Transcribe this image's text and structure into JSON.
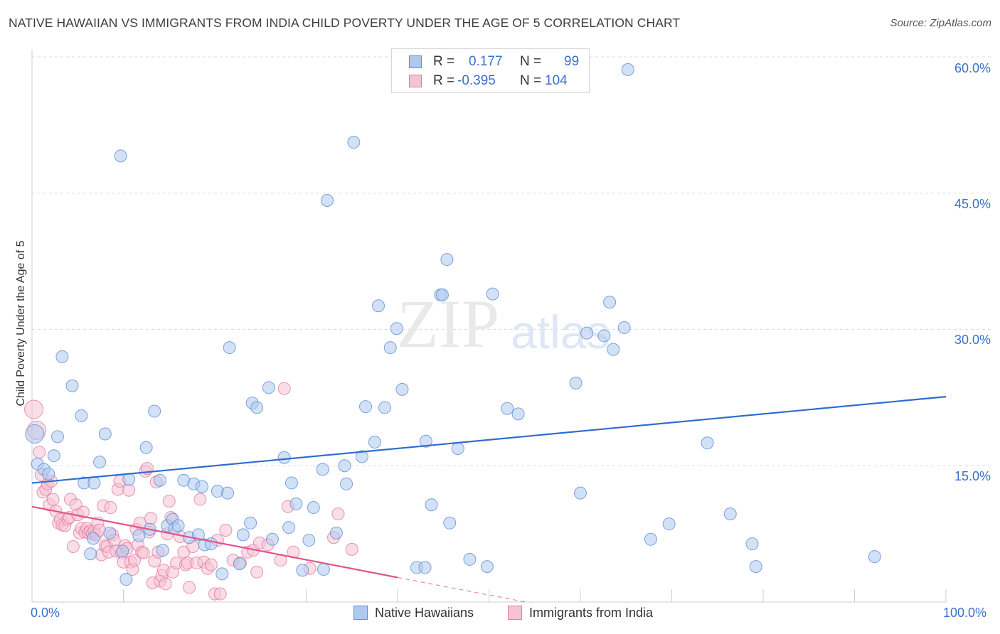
{
  "title": "NATIVE HAWAIIAN VS IMMIGRANTS FROM INDIA CHILD POVERTY UNDER THE AGE OF 5 CORRELATION CHART",
  "source": "Source: ZipAtlas.com",
  "watermark": {
    "zip": "ZIP",
    "atlas": "atlas"
  },
  "legend_stats": [
    {
      "r_label": "R =",
      "r_value": "0.177",
      "n_label": "N =",
      "n_value": "99",
      "color": "#5b8fd6"
    },
    {
      "r_label": "R =",
      "r_value": "-0.395",
      "n_label": "N =",
      "n_value": "104",
      "color": "#e47aa0"
    }
  ],
  "colors": {
    "blue_fill": "#aec8ee",
    "blue_stroke": "#5b8fd6",
    "blue_line": "#2f6ccf",
    "pink_fill": "#f6c3d4",
    "pink_stroke": "#e47aa0",
    "pink_line": "#e0558a",
    "grid": "#dddddd",
    "tick_text": "#3a70cc"
  },
  "chart_data": {
    "type": "scatter",
    "xlabel": "",
    "ylabel": "Child Poverty Under the Age of 5",
    "xlim": [
      0,
      100
    ],
    "ylim": [
      0,
      60
    ],
    "x_tick_labels": {
      "min": "0.0%",
      "max": "100.0%"
    },
    "y_ticks": [
      {
        "value": 15,
        "label": "15.0%"
      },
      {
        "value": 30,
        "label": "30.0%"
      },
      {
        "value": 45,
        "label": "45.0%"
      },
      {
        "value": 60,
        "label": "60.0%"
      }
    ],
    "series": [
      {
        "name": "Native Hawaiians",
        "r": 0.177,
        "n": 99,
        "trend": {
          "x": [
            0,
            100
          ],
          "y": [
            13.1,
            22.6
          ]
        },
        "points": [
          [
            0.3,
            18.5
          ],
          [
            0.6,
            15.2
          ],
          [
            1.3,
            14.6
          ],
          [
            1.8,
            14.1
          ],
          [
            2.4,
            16.1
          ],
          [
            2.8,
            18.2
          ],
          [
            3.3,
            27.0
          ],
          [
            4.4,
            23.8
          ],
          [
            5.4,
            20.5
          ],
          [
            5.7,
            13.1
          ],
          [
            6.4,
            5.3
          ],
          [
            6.8,
            13.1
          ],
          [
            6.7,
            7.0
          ],
          [
            7.4,
            15.4
          ],
          [
            8.0,
            18.5
          ],
          [
            8.5,
            7.6
          ],
          [
            9.7,
            49.1
          ],
          [
            9.9,
            5.6
          ],
          [
            10.3,
            2.5
          ],
          [
            10.6,
            13.5
          ],
          [
            11.7,
            7.3
          ],
          [
            12.5,
            17.0
          ],
          [
            12.9,
            8.0
          ],
          [
            13.4,
            21.0
          ],
          [
            14.0,
            13.4
          ],
          [
            14.3,
            5.7
          ],
          [
            14.8,
            8.4
          ],
          [
            15.4,
            9.1
          ],
          [
            15.6,
            8.1
          ],
          [
            16.0,
            8.4
          ],
          [
            16.6,
            13.4
          ],
          [
            17.2,
            7.1
          ],
          [
            17.7,
            13.0
          ],
          [
            18.2,
            7.4
          ],
          [
            18.6,
            12.7
          ],
          [
            18.9,
            6.3
          ],
          [
            19.6,
            6.4
          ],
          [
            20.3,
            12.2
          ],
          [
            20.8,
            3.1
          ],
          [
            21.4,
            12.0
          ],
          [
            21.6,
            28.0
          ],
          [
            22.7,
            4.2
          ],
          [
            23.1,
            7.4
          ],
          [
            23.9,
            8.7
          ],
          [
            24.1,
            21.9
          ],
          [
            24.6,
            21.4
          ],
          [
            25.9,
            23.6
          ],
          [
            26.3,
            6.9
          ],
          [
            27.6,
            15.9
          ],
          [
            28.1,
            8.2
          ],
          [
            28.4,
            13.1
          ],
          [
            28.9,
            10.8
          ],
          [
            29.6,
            3.5
          ],
          [
            30.3,
            6.8
          ],
          [
            30.8,
            10.4
          ],
          [
            31.9,
            3.6
          ],
          [
            31.8,
            14.6
          ],
          [
            32.3,
            44.2
          ],
          [
            33.3,
            7.6
          ],
          [
            34.2,
            15.0
          ],
          [
            34.4,
            13.0
          ],
          [
            35.2,
            50.6
          ],
          [
            36.1,
            16.0
          ],
          [
            36.5,
            21.5
          ],
          [
            37.5,
            17.6
          ],
          [
            37.9,
            32.6
          ],
          [
            38.6,
            21.4
          ],
          [
            39.2,
            28.0
          ],
          [
            39.9,
            30.1
          ],
          [
            40.5,
            23.4
          ],
          [
            42.1,
            3.8
          ],
          [
            43.0,
            3.8
          ],
          [
            43.1,
            17.7
          ],
          [
            43.7,
            10.7
          ],
          [
            44.7,
            33.8
          ],
          [
            44.9,
            33.8
          ],
          [
            45.4,
            37.7
          ],
          [
            45.7,
            8.7
          ],
          [
            46.6,
            16.9
          ],
          [
            47.9,
            4.7
          ],
          [
            49.8,
            3.9
          ],
          [
            50.4,
            33.9
          ],
          [
            52.0,
            21.3
          ],
          [
            53.2,
            20.7
          ],
          [
            59.5,
            24.1
          ],
          [
            60.0,
            12.0
          ],
          [
            60.7,
            29.6
          ],
          [
            62.6,
            29.3
          ],
          [
            63.2,
            33.0
          ],
          [
            63.6,
            27.8
          ],
          [
            64.8,
            30.2
          ],
          [
            65.2,
            58.6
          ],
          [
            67.7,
            6.9
          ],
          [
            69.7,
            8.6
          ],
          [
            73.9,
            17.5
          ],
          [
            76.4,
            9.7
          ],
          [
            78.8,
            6.4
          ],
          [
            79.2,
            3.9
          ],
          [
            92.2,
            5.0
          ]
        ]
      },
      {
        "name": "Immigrants from India",
        "r": -0.395,
        "n": 104,
        "trend": {
          "x": [
            0,
            40
          ],
          "y": [
            10.5,
            2.7
          ]
        },
        "trend_dashed": {
          "x": [
            40,
            54
          ],
          "y": [
            2.7,
            0
          ]
        },
        "points": [
          [
            0.2,
            21.2
          ],
          [
            0.5,
            18.9
          ],
          [
            0.8,
            16.5
          ],
          [
            1.0,
            14.0
          ],
          [
            1.2,
            12.1
          ],
          [
            1.5,
            12.4
          ],
          [
            1.7,
            13.0
          ],
          [
            1.9,
            10.7
          ],
          [
            2.1,
            13.3
          ],
          [
            2.3,
            11.3
          ],
          [
            2.6,
            10.0
          ],
          [
            2.9,
            8.7
          ],
          [
            3.1,
            9.1
          ],
          [
            3.3,
            8.5
          ],
          [
            3.6,
            8.4
          ],
          [
            3.9,
            9.1
          ],
          [
            4.1,
            9.3
          ],
          [
            4.2,
            11.3
          ],
          [
            4.5,
            6.1
          ],
          [
            4.8,
            10.7
          ],
          [
            5.0,
            9.6
          ],
          [
            5.2,
            7.6
          ],
          [
            5.4,
            8.1
          ],
          [
            5.6,
            9.9
          ],
          [
            5.8,
            7.7
          ],
          [
            6.0,
            8.1
          ],
          [
            6.2,
            7.6
          ],
          [
            6.4,
            7.8
          ],
          [
            6.6,
            7.5
          ],
          [
            6.8,
            7.8
          ],
          [
            7.0,
            7.4
          ],
          [
            7.2,
            8.7
          ],
          [
            7.4,
            7.9
          ],
          [
            7.6,
            5.2
          ],
          [
            7.8,
            10.6
          ],
          [
            8.0,
            6.2
          ],
          [
            8.2,
            6.1
          ],
          [
            8.4,
            5.5
          ],
          [
            8.6,
            10.4
          ],
          [
            8.8,
            7.4
          ],
          [
            9.0,
            6.8
          ],
          [
            9.2,
            5.6
          ],
          [
            9.4,
            12.4
          ],
          [
            9.6,
            13.3
          ],
          [
            9.8,
            5.4
          ],
          [
            10.0,
            4.4
          ],
          [
            10.2,
            6.2
          ],
          [
            10.4,
            5.9
          ],
          [
            10.6,
            12.3
          ],
          [
            10.8,
            4.4
          ],
          [
            11.0,
            3.6
          ],
          [
            11.2,
            4.6
          ],
          [
            11.4,
            8.0
          ],
          [
            11.6,
            6.3
          ],
          [
            11.8,
            8.7
          ],
          [
            12.0,
            5.5
          ],
          [
            12.2,
            5.4
          ],
          [
            12.4,
            14.4
          ],
          [
            12.6,
            14.7
          ],
          [
            12.8,
            7.7
          ],
          [
            13.0,
            9.2
          ],
          [
            13.2,
            2.1
          ],
          [
            13.4,
            4.5
          ],
          [
            13.6,
            13.2
          ],
          [
            13.8,
            5.5
          ],
          [
            14.0,
            2.3
          ],
          [
            14.2,
            2.9
          ],
          [
            14.4,
            3.5
          ],
          [
            14.6,
            2.0
          ],
          [
            14.8,
            7.5
          ],
          [
            15.0,
            11.1
          ],
          [
            15.2,
            9.3
          ],
          [
            15.4,
            3.3
          ],
          [
            15.8,
            4.3
          ],
          [
            16.2,
            7.2
          ],
          [
            16.6,
            5.5
          ],
          [
            16.8,
            4.1
          ],
          [
            17.0,
            4.3
          ],
          [
            17.2,
            1.6
          ],
          [
            17.6,
            6.1
          ],
          [
            18.0,
            4.3
          ],
          [
            18.4,
            11.3
          ],
          [
            18.8,
            4.4
          ],
          [
            19.2,
            3.7
          ],
          [
            19.6,
            4.1
          ],
          [
            20.0,
            0.9
          ],
          [
            20.3,
            6.8
          ],
          [
            20.6,
            0.9
          ],
          [
            21.2,
            7.9
          ],
          [
            22.0,
            4.6
          ],
          [
            22.8,
            4.3
          ],
          [
            23.6,
            5.5
          ],
          [
            24.2,
            5.7
          ],
          [
            24.6,
            3.3
          ],
          [
            24.9,
            6.5
          ],
          [
            25.8,
            6.3
          ],
          [
            27.2,
            4.6
          ],
          [
            27.6,
            23.5
          ],
          [
            28.0,
            10.5
          ],
          [
            28.6,
            5.5
          ],
          [
            30.4,
            3.7
          ],
          [
            33.0,
            7.1
          ],
          [
            33.5,
            9.7
          ],
          [
            35.0,
            5.8
          ]
        ]
      }
    ]
  },
  "legend_bottom": [
    "Native Hawaiians",
    "Immigrants from India"
  ]
}
